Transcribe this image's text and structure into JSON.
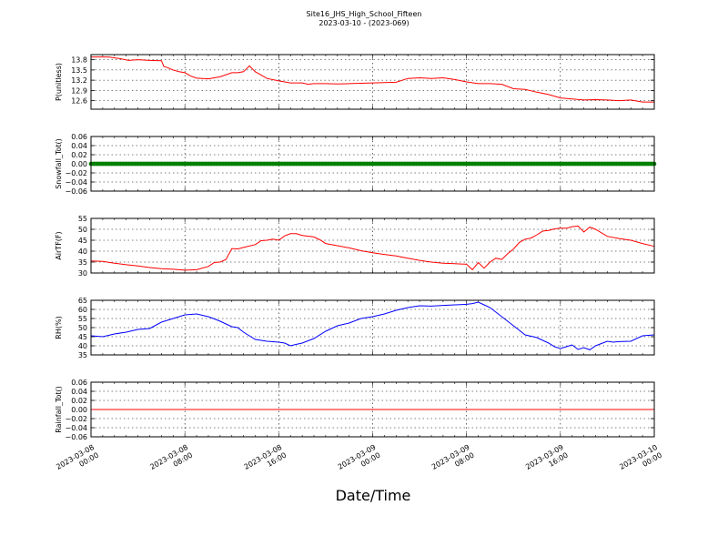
{
  "title": {
    "line1": "Site16_JHS_High_School_Fifteen",
    "line2": "2023-03-10 - (2023-069)"
  },
  "xlabel": "Date/Time",
  "chart_data": {
    "type": "line",
    "x_range": [
      "2023-03-08 00:00",
      "2023-03-10 00:00"
    ],
    "x_ticks": [
      {
        "line1": "2023-03-08",
        "line2": "00:00",
        "hours": 0
      },
      {
        "line1": "2023-03-08",
        "line2": "08:00",
        "hours": 8
      },
      {
        "line1": "2023-03-08",
        "line2": "16:00",
        "hours": 16
      },
      {
        "line1": "2023-03-09",
        "line2": "00:00",
        "hours": 24
      },
      {
        "line1": "2023-03-09",
        "line2": "08:00",
        "hours": 32
      },
      {
        "line1": "2023-03-09",
        "line2": "16:00",
        "hours": 40
      },
      {
        "line1": "2023-03-10",
        "line2": "00:00",
        "hours": 48
      }
    ],
    "grid": true,
    "panels": [
      {
        "ylabel": "P(unitless)",
        "ylim": [
          12.35,
          13.95
        ],
        "yticks": [
          "12.6",
          "12.9",
          "13.2",
          "13.5",
          "13.8"
        ],
        "color": "#ff0000",
        "style": "line",
        "series_hours": [
          0,
          1.5,
          2.5,
          3.2,
          4,
          5,
          6,
          6.2,
          6.5,
          7,
          7.5,
          8,
          8.5,
          9,
          10,
          11,
          12,
          12.5,
          13,
          13.5,
          14,
          15,
          16,
          17,
          18,
          18.5,
          19,
          20,
          21,
          22,
          23,
          24,
          25,
          26,
          27,
          28,
          29,
          30,
          31,
          32,
          33,
          34,
          35,
          36,
          37,
          38,
          39,
          40,
          41,
          42,
          43,
          44,
          45,
          46,
          47,
          48
        ],
        "series_values": [
          13.88,
          13.88,
          13.83,
          13.78,
          13.8,
          13.78,
          13.77,
          13.6,
          13.57,
          13.5,
          13.45,
          13.42,
          13.32,
          13.26,
          13.24,
          13.3,
          13.42,
          13.42,
          13.45,
          13.62,
          13.45,
          13.25,
          13.18,
          13.12,
          13.12,
          13.08,
          13.1,
          13.1,
          13.09,
          13.1,
          13.11,
          13.12,
          13.13,
          13.14,
          13.25,
          13.27,
          13.25,
          13.27,
          13.22,
          13.15,
          13.1,
          13.1,
          13.08,
          12.95,
          12.93,
          12.85,
          12.78,
          12.68,
          12.65,
          12.62,
          12.63,
          12.62,
          12.6,
          12.62,
          12.56,
          12.56
        ]
      },
      {
        "ylabel": "Snowfall_Tot()",
        "ylim": [
          -0.06,
          0.06
        ],
        "yticks": [
          "−0.06",
          "−0.04",
          "−0.02",
          "0.00",
          "0.02",
          "0.04",
          "0.06"
        ],
        "color": "#008000",
        "style": "markers",
        "series_hours": [
          0,
          48
        ],
        "series_values": [
          0,
          0
        ]
      },
      {
        "ylabel": "AirTF(F)",
        "ylim": [
          30,
          55
        ],
        "yticks": [
          "30",
          "35",
          "40",
          "45",
          "50",
          "55"
        ],
        "color": "#ff0000",
        "style": "line",
        "series_hours": [
          0,
          1,
          2,
          3,
          4,
          5,
          6,
          7,
          8,
          9,
          10,
          10.5,
          11,
          11.5,
          12,
          12.5,
          13,
          14,
          14.5,
          15,
          15.5,
          16,
          16.5,
          17,
          17.5,
          18,
          19,
          19.5,
          20,
          21,
          22,
          23,
          24,
          25,
          26,
          27,
          28,
          29,
          30,
          31,
          32,
          32.5,
          33,
          33.5,
          34,
          34.5,
          35,
          35.5,
          36,
          36.5,
          37,
          37.5,
          38,
          38.5,
          39,
          39.5,
          40,
          40.5,
          41,
          41.5,
          42,
          42.5,
          43,
          44,
          45,
          46,
          47,
          48
        ],
        "series_values": [
          35.5,
          35.3,
          34.5,
          33.8,
          33.2,
          32.5,
          32.0,
          31.7,
          31.3,
          31.5,
          33.0,
          34.8,
          35.0,
          36.2,
          41.2,
          41.0,
          41.7,
          43.0,
          44.8,
          45.0,
          45.5,
          45.0,
          47.0,
          48.0,
          48.0,
          47.2,
          46.5,
          45.2,
          43.5,
          42.5,
          41.5,
          40.2,
          39.3,
          38.5,
          37.8,
          36.8,
          35.8,
          35.0,
          34.5,
          34.3,
          34.0,
          31.5,
          34.8,
          32.2,
          35.0,
          36.8,
          36.2,
          38.8,
          41.0,
          44.0,
          45.5,
          46.0,
          47.5,
          49.2,
          49.5,
          50.2,
          50.5,
          50.5,
          51.2,
          51.5,
          48.8,
          51.0,
          50.0,
          46.8,
          45.8,
          45.0,
          43.5,
          42.2
        ]
      },
      {
        "ylabel": "RH(%)",
        "ylim": [
          35,
          65
        ],
        "yticks": [
          "35",
          "40",
          "45",
          "50",
          "55",
          "60",
          "65"
        ],
        "color": "#0000ff",
        "style": "line",
        "series_hours": [
          0,
          1,
          2,
          3,
          4,
          5,
          6,
          7,
          8,
          9,
          10,
          10.5,
          11,
          11.5,
          12,
          12.5,
          13,
          14,
          15,
          16,
          16.5,
          17,
          17.5,
          18,
          19,
          20,
          21,
          22,
          23,
          24,
          25,
          26,
          27,
          28,
          29,
          30,
          31,
          32,
          32.5,
          33,
          33.5,
          34,
          35,
          36,
          37,
          38,
          39,
          39.5,
          40,
          40.5,
          41,
          41.5,
          42,
          42.5,
          43,
          44,
          44.5,
          45,
          46,
          47,
          48
        ],
        "series_values": [
          45.5,
          45.0,
          46.5,
          47.5,
          49.0,
          49.5,
          53.0,
          55.0,
          57.0,
          57.5,
          56.0,
          54.8,
          53.5,
          52.0,
          50.5,
          50.0,
          47.5,
          43.5,
          42.5,
          42.0,
          41.5,
          40.0,
          40.8,
          41.5,
          44.0,
          48.0,
          51.0,
          52.5,
          55.0,
          56.0,
          57.5,
          59.5,
          61.0,
          62.0,
          61.8,
          62.2,
          62.5,
          62.8,
          63.2,
          64.0,
          62.5,
          61.0,
          56.0,
          51.0,
          46.0,
          44.5,
          41.5,
          39.5,
          38.5,
          39.5,
          40.5,
          38.0,
          39.0,
          37.8,
          40.0,
          42.5,
          42.0,
          42.3,
          42.5,
          45.5,
          46.0
        ]
      },
      {
        "ylabel": "Rainfall_Tot()",
        "ylim": [
          -0.06,
          0.06
        ],
        "yticks": [
          "−0.06",
          "−0.04",
          "−0.02",
          "0.00",
          "0.02",
          "0.04",
          "0.06"
        ],
        "color": "#ff0000",
        "style": "line",
        "series_hours": [
          0,
          48
        ],
        "series_values": [
          0,
          0
        ]
      }
    ]
  }
}
